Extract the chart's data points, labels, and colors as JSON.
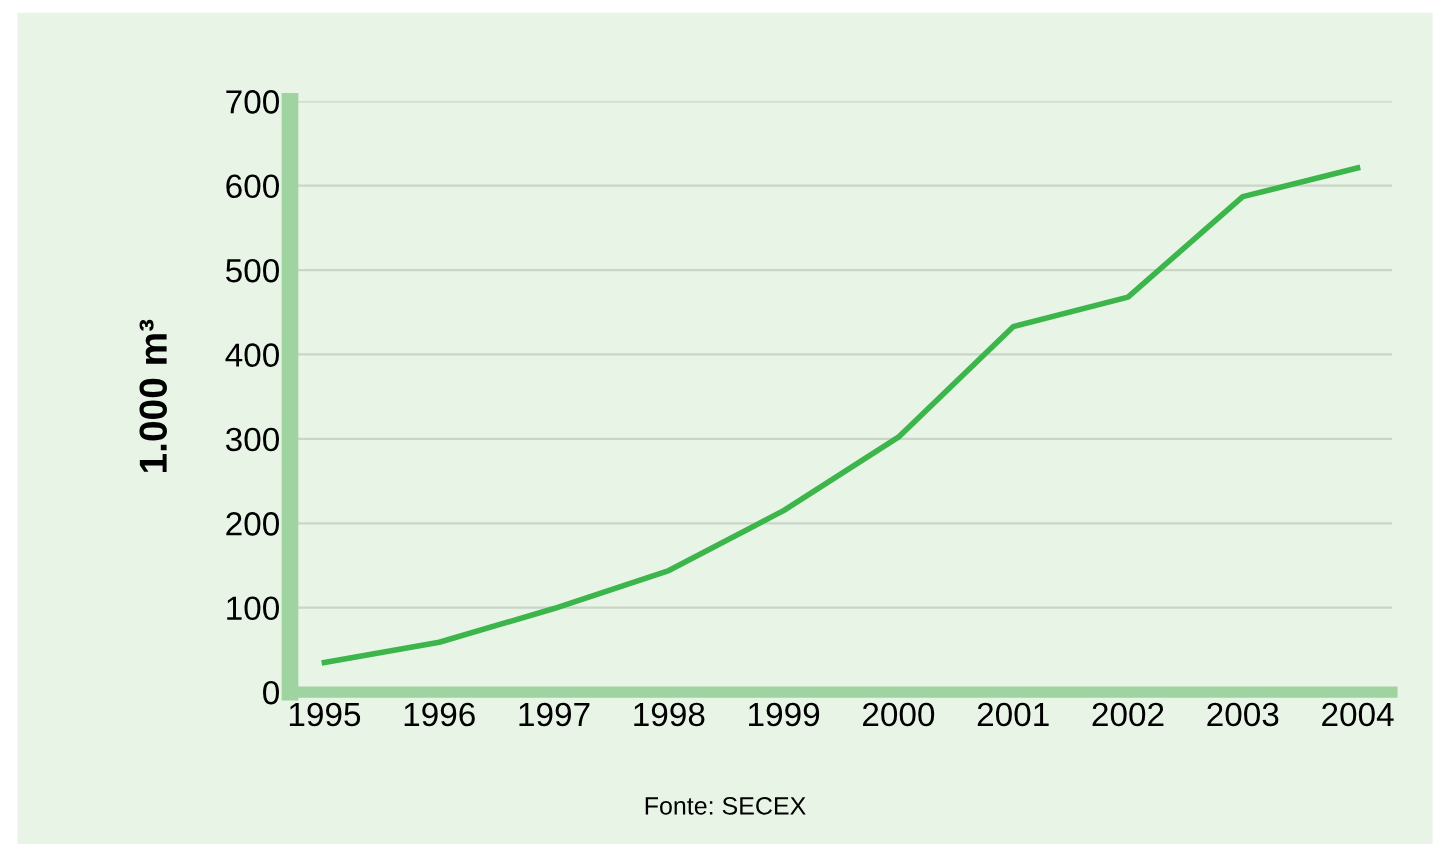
{
  "chart_data": {
    "type": "line",
    "ylabel": "1.000 m³",
    "categories": [
      "1995",
      "1996",
      "1997",
      "1998",
      "1999",
      "2000",
      "2001",
      "2002",
      "2003",
      "2004"
    ],
    "series": [
      {
        "color": "#3cb54a",
        "values": [
          35,
          59,
          99,
          144,
          215,
          302,
          433,
          468,
          587,
          621
        ]
      }
    ],
    "ylim": [
      0,
      700
    ],
    "yticks": [
      0,
      100,
      200,
      300,
      400,
      500,
      600,
      700
    ],
    "grid": "y",
    "legend": false,
    "marker": "none",
    "line_style": "solid",
    "annotations": [
      "Fonte: SECEX"
    ]
  }
}
